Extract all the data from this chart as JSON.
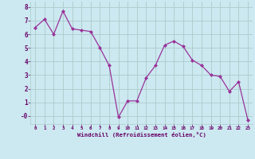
{
  "x": [
    0,
    1,
    2,
    3,
    4,
    5,
    6,
    7,
    8,
    9,
    10,
    11,
    12,
    13,
    14,
    15,
    16,
    17,
    18,
    19,
    20,
    21,
    22,
    23
  ],
  "y": [
    6.5,
    7.1,
    6.0,
    7.7,
    6.4,
    6.3,
    6.2,
    5.0,
    3.7,
    -0.1,
    1.1,
    1.1,
    2.8,
    3.7,
    5.2,
    5.5,
    5.1,
    4.1,
    3.7,
    3.0,
    2.9,
    1.8,
    2.5,
    -0.3
  ],
  "line_color": "#993399",
  "marker_color": "#993399",
  "bg_color": "#cce8f0",
  "grid_color": "#aacccc",
  "xlabel": "Windchill (Refroidissement éolien,°C)",
  "xlabel_color": "#660066",
  "ylabel_ticks": [
    0,
    1,
    2,
    3,
    4,
    5,
    6,
    7,
    8
  ],
  "ylabel_labels": [
    "-0",
    "1",
    "2",
    "3",
    "4",
    "5",
    "6",
    "7",
    "8"
  ],
  "ylim": [
    -0.6,
    8.4
  ],
  "xlim": [
    -0.5,
    23.5
  ],
  "tick_color": "#660066",
  "font_name": "monospace"
}
